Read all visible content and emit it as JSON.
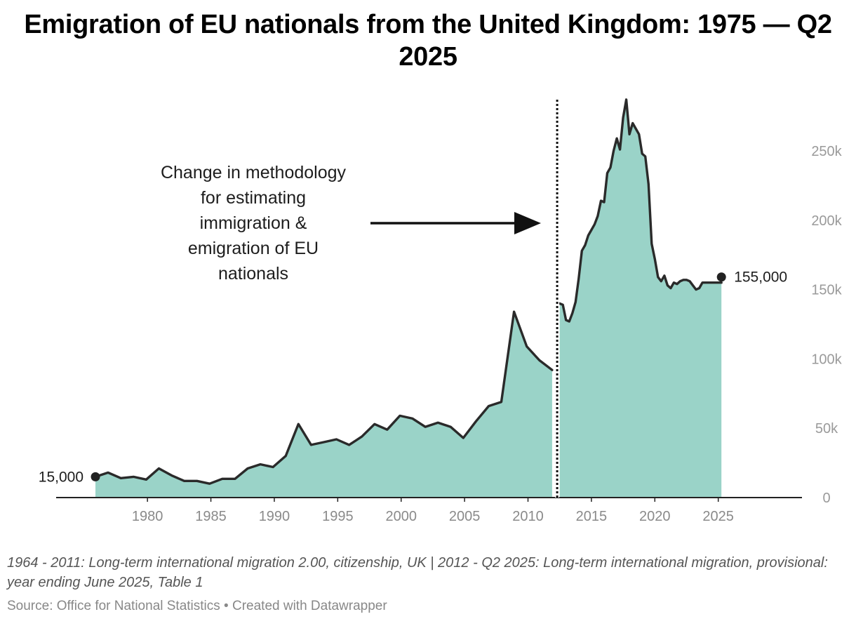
{
  "colors": {
    "area_fill": "#9ad3c8",
    "line": "#2a2a2a",
    "axis": "#222222",
    "marker": "#222222",
    "annotation_line": "#111111"
  },
  "chart_data": {
    "type": "area",
    "title": "Emigration of EU nationals from the United Kingdom: 1975 — Q2 2025",
    "xlabel": "",
    "ylabel": "",
    "xlim": [
      1972.8,
      2031.6
    ],
    "ylim": [
      0,
      290000
    ],
    "x_ticks": [
      1980,
      1985,
      1990,
      1995,
      2000,
      2005,
      2010,
      2015,
      2020,
      2025
    ],
    "x_tick_labels": [
      "1980",
      "1985",
      "1990",
      "1995",
      "2000",
      "2005",
      "2010",
      "2015",
      "2020",
      "2025"
    ],
    "y_ticks": [
      0,
      50000,
      100000,
      150000,
      200000,
      250000
    ],
    "y_tick_labels": [
      "0",
      "50k",
      "100k",
      "150k",
      "200k",
      "250k"
    ],
    "grid": false,
    "series": [
      {
        "name": "1964 - 2011: Long-term international migration 2.00, citizenship, UK",
        "x": [
          1975.9,
          1976.9,
          1977.9,
          1978.9,
          1979.9,
          1980.9,
          1981.9,
          1982.9,
          1983.9,
          1984.9,
          1985.9,
          1986.9,
          1987.9,
          1988.9,
          1989.9,
          1990.9,
          1991.9,
          1992.9,
          1993.9,
          1994.9,
          1995.9,
          1996.9,
          1997.9,
          1998.9,
          1999.9,
          2000.9,
          2001.9,
          2002.9,
          2003.9,
          2004.9,
          2005.9,
          2006.9,
          2007.9,
          2008.9,
          2009.9,
          2010.9,
          2011.9
        ],
        "values": [
          15000,
          18000,
          14000,
          15000,
          13000,
          21000,
          16000,
          12000,
          12000,
          10000,
          13500,
          13500,
          21000,
          24000,
          22000,
          30000,
          53000,
          38000,
          40000,
          42000,
          38000,
          44000,
          53000,
          49000,
          59000,
          57000,
          51000,
          54000,
          51000,
          43000,
          55000,
          66000,
          69000,
          134000,
          109000,
          99000,
          92000
        ]
      },
      {
        "name": "2012 - Q2 2025: Long-term international migration, provisional: year ending June 2025, Table 1",
        "x": [
          2012.5,
          2012.75,
          2013.0,
          2013.25,
          2013.5,
          2013.75,
          2014.0,
          2014.25,
          2014.5,
          2014.75,
          2015.0,
          2015.25,
          2015.5,
          2015.75,
          2016.0,
          2016.25,
          2016.5,
          2016.75,
          2017.0,
          2017.25,
          2017.5,
          2017.75,
          2018.0,
          2018.25,
          2018.5,
          2018.75,
          2019.0,
          2019.25,
          2019.5,
          2019.75,
          2020.0,
          2020.25,
          2020.5,
          2020.75,
          2021.0,
          2021.25,
          2021.5,
          2021.75,
          2022.0,
          2022.25,
          2022.5,
          2022.75,
          2023.0,
          2023.25,
          2023.5,
          2023.75,
          2024.0,
          2024.25,
          2024.5,
          2024.75,
          2025.0,
          2025.25
        ],
        "values": [
          140000,
          139000,
          128000,
          127000,
          133000,
          141000,
          158000,
          178000,
          182000,
          189000,
          193000,
          197000,
          203000,
          214000,
          213000,
          234000,
          238000,
          250000,
          259000,
          251000,
          274000,
          287000,
          262000,
          270000,
          266000,
          262000,
          248000,
          246000,
          226000,
          183000,
          172000,
          159000,
          156000,
          160000,
          153000,
          151000,
          155000,
          154000,
          156000,
          157000,
          157000,
          156000,
          153000,
          150000,
          151000,
          155000,
          155000,
          155000,
          155000,
          155000,
          155000,
          155000
        ]
      }
    ],
    "methodology_break_x": 2012.3,
    "annotations": {
      "methodology_lines": [
        "Change in methodology",
        "for estimating",
        "immigration &",
        "emigration of EU",
        "nationals"
      ],
      "start_value_label": "15,000",
      "end_value_label": "155,000"
    },
    "description": "1964 - 2011: Long-term international migration 2.00, citizenship, UK | 2012 - Q2 2025: Long-term international migration, provisional: year ending June 2025, Table 1",
    "source": "Source: Office for National Statistics • Created with Datawrapper"
  }
}
